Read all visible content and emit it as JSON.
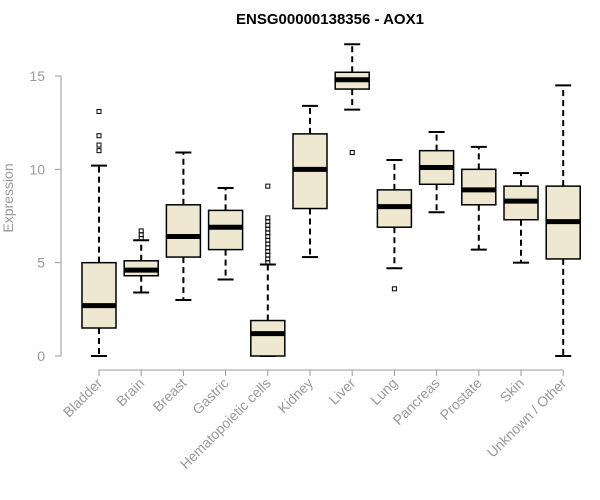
{
  "chart_data": {
    "type": "boxplot",
    "title": "ENSG00000138356 - AOX1",
    "xlabel": "",
    "ylabel": "Expression",
    "ylim": [
      -0.2,
      17
    ],
    "yticks": [
      0,
      5,
      10,
      15
    ],
    "colors": {
      "box_fill": "#EEE8D0",
      "line": "#000000",
      "axis_text": "#999999",
      "title": "#000000"
    },
    "categories": [
      "Bladder",
      "Brain",
      "Breast",
      "Gastric",
      "Hematopoietic cells",
      "Kidney",
      "Liver",
      "Lung",
      "Pancreas",
      "Prostate",
      "Skin",
      "Unknown / Other"
    ],
    "boxes": [
      {
        "name": "Bladder",
        "whisker_low": 0.0,
        "q1": 1.5,
        "median": 2.7,
        "q3": 5.0,
        "whisker_high": 10.2,
        "outliers": [
          11.0,
          11.3,
          11.8,
          13.1
        ]
      },
      {
        "name": "Brain",
        "whisker_low": 3.4,
        "q1": 4.3,
        "median": 4.6,
        "q3": 5.1,
        "whisker_high": 6.2,
        "outliers": [
          6.3,
          6.5,
          6.7
        ]
      },
      {
        "name": "Breast",
        "whisker_low": 3.0,
        "q1": 5.3,
        "median": 6.4,
        "q3": 8.1,
        "whisker_high": 10.9,
        "outliers": []
      },
      {
        "name": "Gastric",
        "whisker_low": 4.1,
        "q1": 5.7,
        "median": 6.9,
        "q3": 7.8,
        "whisker_high": 9.0,
        "outliers": []
      },
      {
        "name": "Hematopoietic cells",
        "whisker_low": 0.0,
        "q1": 0.0,
        "median": 1.2,
        "q3": 1.9,
        "whisker_high": 4.9,
        "outliers": [
          5.0,
          5.2,
          5.4,
          5.6,
          5.8,
          6.0,
          6.2,
          6.4,
          6.6,
          6.8,
          7.0,
          7.2,
          7.4,
          9.1
        ]
      },
      {
        "name": "Kidney",
        "whisker_low": 5.3,
        "q1": 7.9,
        "median": 10.0,
        "q3": 11.9,
        "whisker_high": 13.4,
        "outliers": []
      },
      {
        "name": "Liver",
        "whisker_low": 13.2,
        "q1": 14.3,
        "median": 14.8,
        "q3": 15.2,
        "whisker_high": 16.7,
        "outliers": [
          10.9
        ]
      },
      {
        "name": "Lung",
        "whisker_low": 4.7,
        "q1": 6.9,
        "median": 8.0,
        "q3": 8.9,
        "whisker_high": 10.5,
        "outliers": [
          3.6
        ]
      },
      {
        "name": "Pancreas",
        "whisker_low": 7.7,
        "q1": 9.2,
        "median": 10.1,
        "q3": 11.0,
        "whisker_high": 12.0,
        "outliers": []
      },
      {
        "name": "Prostate",
        "whisker_low": 5.7,
        "q1": 8.1,
        "median": 8.9,
        "q3": 10.0,
        "whisker_high": 11.2,
        "outliers": []
      },
      {
        "name": "Skin",
        "whisker_low": 5.0,
        "q1": 7.3,
        "median": 8.3,
        "q3": 9.1,
        "whisker_high": 9.8,
        "outliers": []
      },
      {
        "name": "Unknown / Other",
        "whisker_low": 0.0,
        "q1": 5.2,
        "median": 7.2,
        "q3": 9.1,
        "whisker_high": 14.5,
        "outliers": []
      }
    ]
  }
}
